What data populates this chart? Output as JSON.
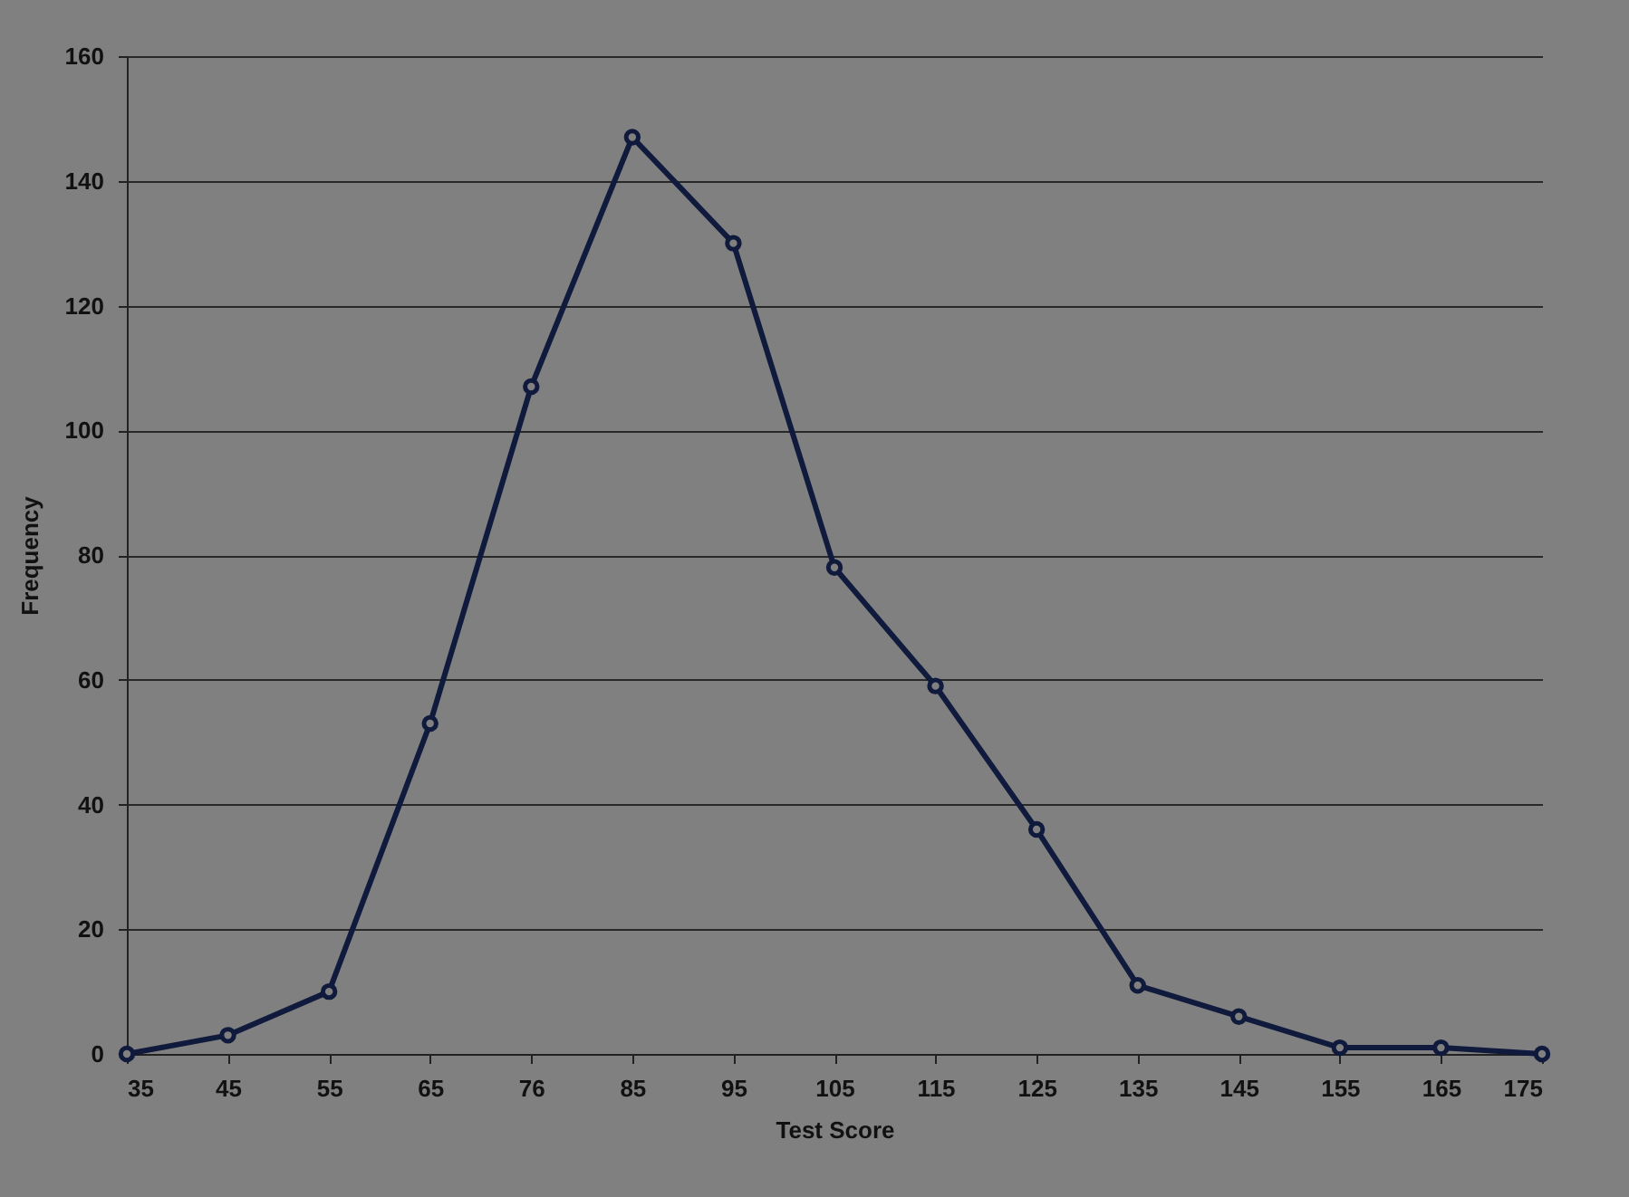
{
  "chart_data": {
    "type": "line",
    "xlabel": "Test Score",
    "ylabel": "Frequency",
    "categories": [
      "35",
      "45",
      "55",
      "65",
      "76",
      "85",
      "95",
      "105",
      "115",
      "125",
      "135",
      "145",
      "155",
      "165",
      "175"
    ],
    "series": [
      {
        "color": "#0f1a3c",
        "values": [
          0,
          3,
          10,
          53,
          107,
          147,
          130,
          78,
          59,
          36,
          11,
          6,
          1,
          1,
          0
        ]
      }
    ],
    "ylim": [
      0,
      160
    ],
    "yticks": [
      0,
      20,
      40,
      60,
      80,
      100,
      120,
      140,
      160
    ],
    "grid": "y",
    "marker": "circle",
    "line_style": "solid"
  }
}
